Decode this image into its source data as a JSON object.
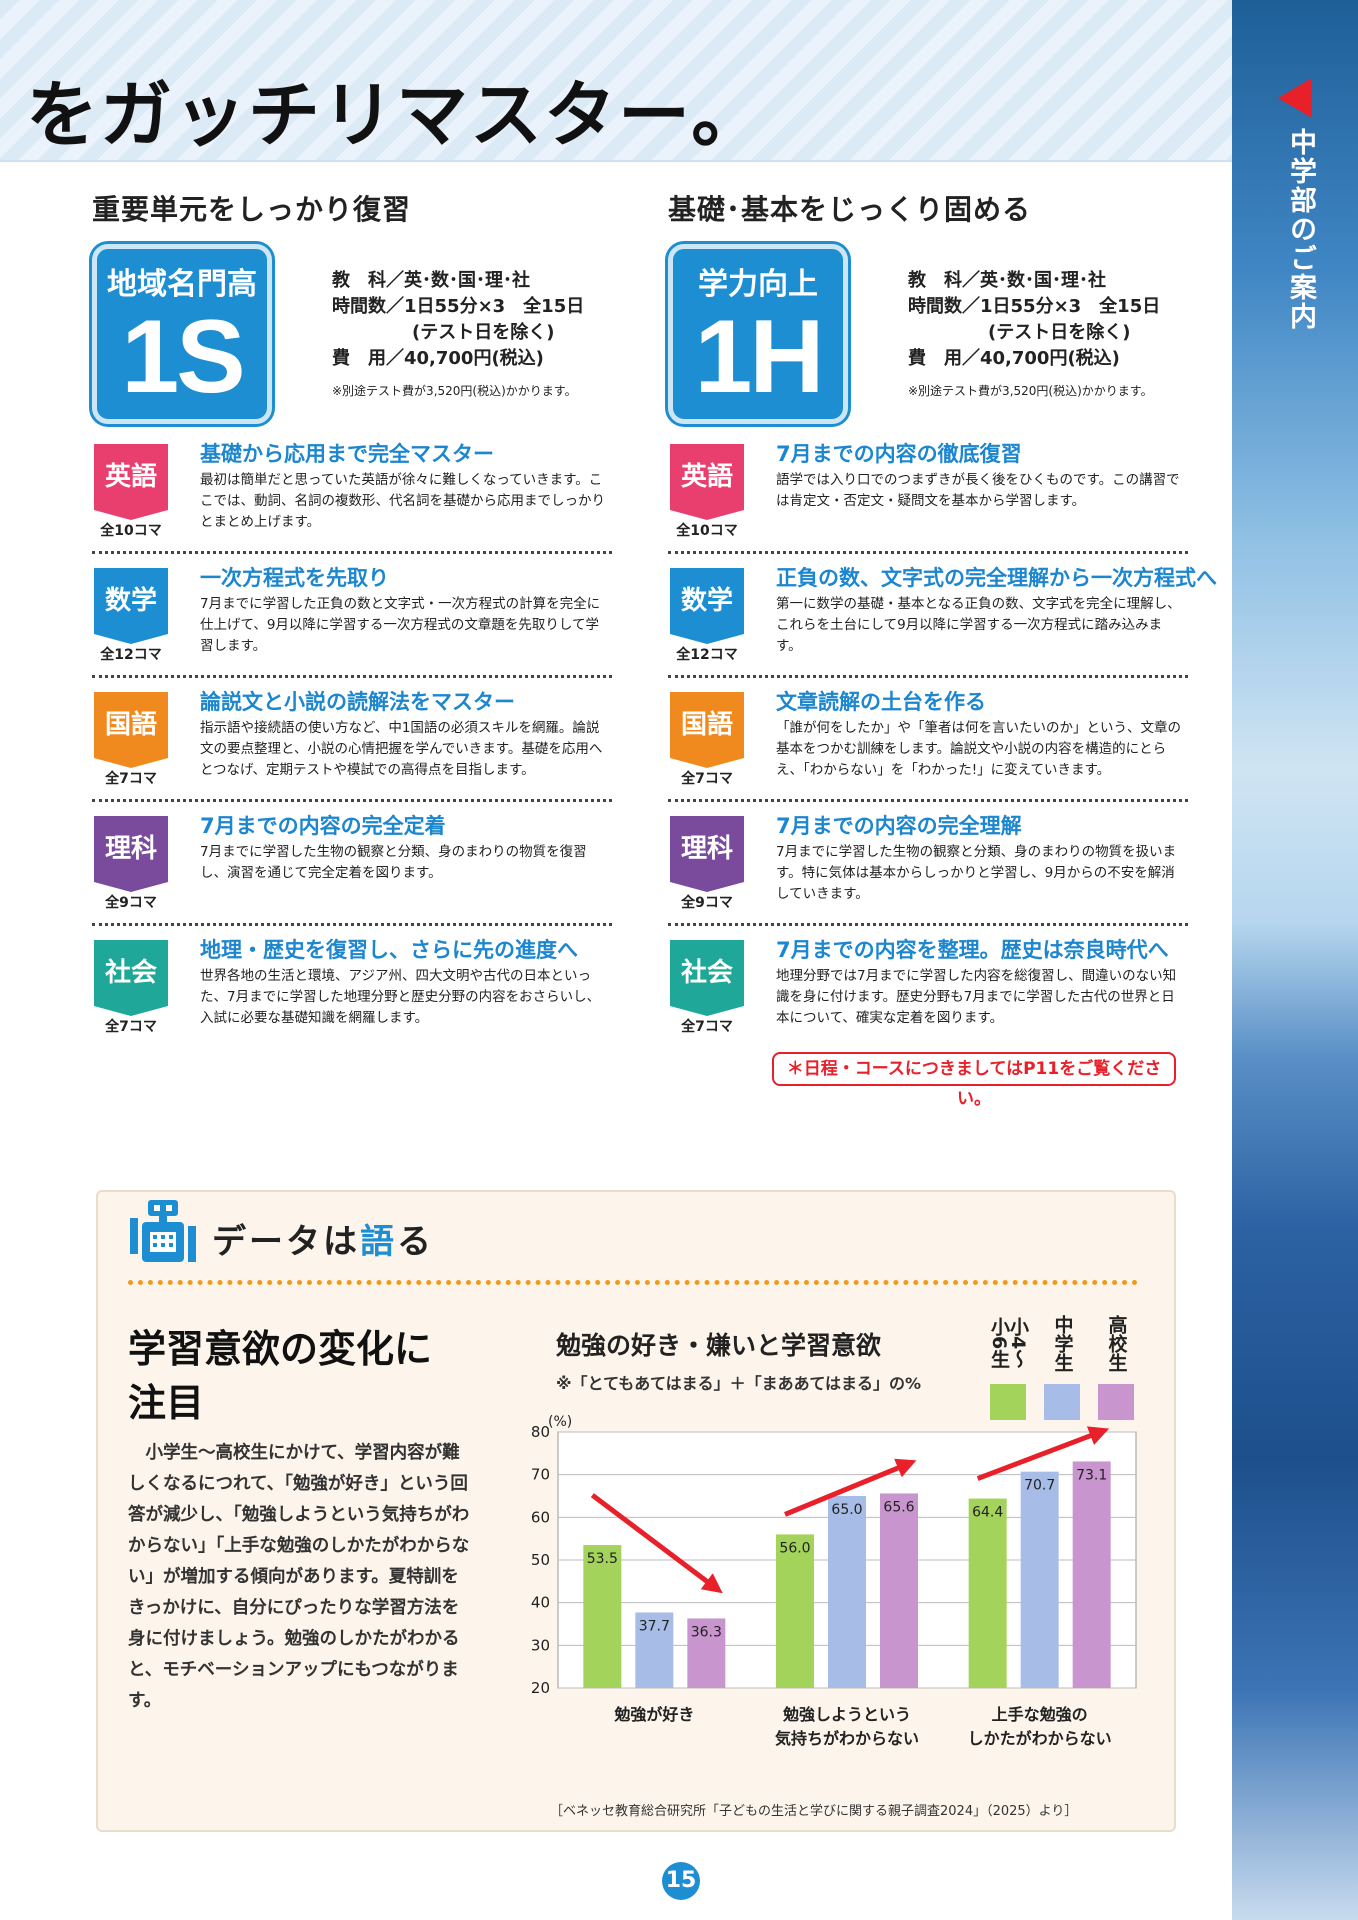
{
  "banner": {
    "title": "をガッチリマスター。"
  },
  "side": {
    "label": "中学部のご案内"
  },
  "left": {
    "heading": "重要単元をしっかり復習",
    "badge_top": "地域名門高",
    "badge_big": "1S",
    "info": {
      "subjects": "教　科／英･数･国･理･社",
      "hours": "時間数／1日55分×3　全15日",
      "hours2": "(テスト日を除く)",
      "fee": "費　用／40,700円(税込)",
      "note": "※別途テスト費が3,520円(税込)かかります。"
    },
    "subjects": [
      {
        "tag": "英語",
        "color": "#e83f6f",
        "koma": "全10コマ",
        "title": "基礎から応用まで完全マスター",
        "body": "最初は簡単だと思っていた英語が徐々に難しくなっていきます。ここでは、動詞、名詞の複数形、代名詞を基礎から応用までしっかりとまとめ上げます。"
      },
      {
        "tag": "数学",
        "color": "#1e8ed2",
        "koma": "全12コマ",
        "title": "一次方程式を先取り",
        "body": "7月までに学習した正負の数と文字式・一次方程式の計算を完全に仕上げて、9月以降に学習する一次方程式の文章題を先取りして学習します。"
      },
      {
        "tag": "国語",
        "color": "#f08a1e",
        "koma": "全7コマ",
        "title": "論説文と小説の読解法をマスター",
        "body": "指示語や接続語の使い方など、中1国語の必須スキルを網羅。論説文の要点整理と、小説の心情把握を学んでいきます。基礎を応用へとつなげ、定期テストや模試での高得点を目指します。"
      },
      {
        "tag": "理科",
        "color": "#7a4a9c",
        "koma": "全9コマ",
        "title": "7月までの内容の完全定着",
        "body": "7月までに学習した生物の観察と分類、身のまわりの物質を復習し、演習を通じて完全定着を図ります。"
      },
      {
        "tag": "社会",
        "color": "#1fa79a",
        "koma": "全7コマ",
        "title": "地理・歴史を復習し、さらに先の進度へ",
        "body": "世界各地の生活と環境、アジア州、四大文明や古代の日本といった、7月までに学習した地理分野と歴史分野の内容をおさらいし、入試に必要な基礎知識を網羅します。"
      }
    ]
  },
  "right": {
    "heading": "基礎･基本をじっくり固める",
    "badge_top": "学力向上",
    "badge_big": "1H",
    "info": {
      "subjects": "教　科／英･数･国･理･社",
      "hours": "時間数／1日55分×3　全15日",
      "hours2": "(テスト日を除く)",
      "fee": "費　用／40,700円(税込)",
      "note": "※別途テスト費が3,520円(税込)かかります。"
    },
    "subjects": [
      {
        "tag": "英語",
        "color": "#e83f6f",
        "koma": "全10コマ",
        "title": "7月までの内容の徹底復習",
        "body": "語学では入り口でのつまずきが長く後をひくものです。この講習では肯定文・否定文・疑問文を基本から学習します。"
      },
      {
        "tag": "数学",
        "color": "#1e8ed2",
        "koma": "全12コマ",
        "title": "正負の数、文字式の完全理解から一次方程式へ",
        "body": "第一に数学の基礎・基本となる正負の数、文字式を完全に理解し、これらを土台にして9月以降に学習する一次方程式に踏み込みます。"
      },
      {
        "tag": "国語",
        "color": "#f08a1e",
        "koma": "全7コマ",
        "title": "文章読解の土台を作る",
        "body": "「誰が何をしたか」や「筆者は何を言いたいのか」という、文章の基本をつかむ訓練をします。論説文や小説の内容を構造的にとらえ、「わからない」を「わかった!」に変えていきます。"
      },
      {
        "tag": "理科",
        "color": "#7a4a9c",
        "koma": "全9コマ",
        "title": "7月までの内容の完全理解",
        "body": "7月までに学習した生物の観察と分類、身のまわりの物質を扱います。特に気体は基本からしっかりと学習し、9月からの不安を解消していきます。"
      },
      {
        "tag": "社会",
        "color": "#1fa79a",
        "koma": "全7コマ",
        "title": "7月までの内容を整理。歴史は奈良時代へ",
        "body": "地理分野では7月までに学習した内容を総復習し、間違いのない知識を身に付けます。歴史分野も7月までに学習した古代の世界と日本について、確実な定着を図ります。"
      }
    ],
    "note": "＊日程・コースにつきましてはP11をご覧ください。"
  },
  "panel": {
    "title_a": "データは",
    "title_b": "語",
    "title_c": "る",
    "headline_1": "学習意欲の変化に",
    "headline_2": "注目",
    "description": "小学生～高校生にかけて、学習内容が難しくなるにつれて、「勉強が好き」という回答が減少し、「勉強しようという気持ちがわからない」「上手な勉強のしかたがわからない」が増加する傾向があります。夏特訓をきっかけに、自分にぴったりな学習方法を身に付けましょう。勉強のしかたがわかると、モチベーションアップにもつながります。",
    "source": "［ベネッセ教育総合研究所「子どもの生活と学びに関する親子調査2024」（2025）より］"
  },
  "chart_data": {
    "type": "bar",
    "title": "勉強の好き・嫌いと学習意欲",
    "subtitle": "※「とてもあてはまる」＋「まああてはまる」の%",
    "ylabel": "(%)",
    "ylim": [
      20,
      80
    ],
    "yticks": [
      20,
      30,
      40,
      50,
      60,
      70,
      80
    ],
    "grid": true,
    "legend": "top-right",
    "categories": [
      [
        "勉強が好き"
      ],
      [
        "勉強しようという",
        "気持ちがわからない"
      ],
      [
        "上手な勉強の",
        "しかたがわからない"
      ]
    ],
    "series": [
      {
        "name": "小4～小6生",
        "color": "#a3d35a",
        "values": [
          53.5,
          56.0,
          64.4
        ]
      },
      {
        "name": "中学生",
        "color": "#a7bde8",
        "values": [
          37.7,
          65.0,
          70.7
        ]
      },
      {
        "name": "高校生",
        "color": "#c995cf",
        "values": [
          36.3,
          65.6,
          73.1
        ]
      }
    ],
    "legend_labels": [
      "小4～小6生",
      "中学生",
      "高校生"
    ]
  },
  "page": {
    "number": "15"
  }
}
